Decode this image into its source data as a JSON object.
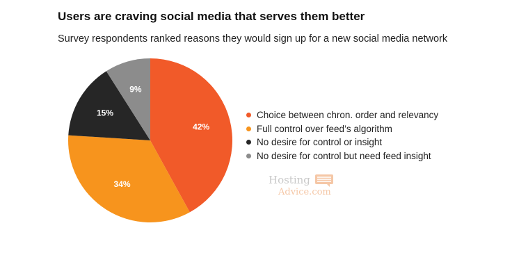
{
  "chart_data": {
    "type": "pie",
    "title": "Users are craving social media that serves them better",
    "subtitle": "Survey respondents ranked reasons they would sign up for a new social media network",
    "slices": [
      {
        "label": "Choice between chron. order and relevancy",
        "value": 42,
        "display": "42%",
        "color": "#F15A29",
        "text_color": "#ffffff"
      },
      {
        "label": "Full control over feed’s algorithm",
        "value": 34,
        "display": "34%",
        "color": "#F7941D",
        "text_color": "#ffffff"
      },
      {
        "label": "No desire for control or insight",
        "value": 15,
        "display": "15%",
        "color": "#262626",
        "text_color": "#ffffff"
      },
      {
        "label": "No desire for control but need feed insight",
        "value": 9,
        "display": "9%",
        "color": "#8C8C8C",
        "text_color": "#ffffff"
      }
    ],
    "start_angle": "top",
    "direction": "clockwise",
    "legend_position": "right"
  },
  "watermark": {
    "line1": "Hosting",
    "line2": "Advice.com"
  }
}
